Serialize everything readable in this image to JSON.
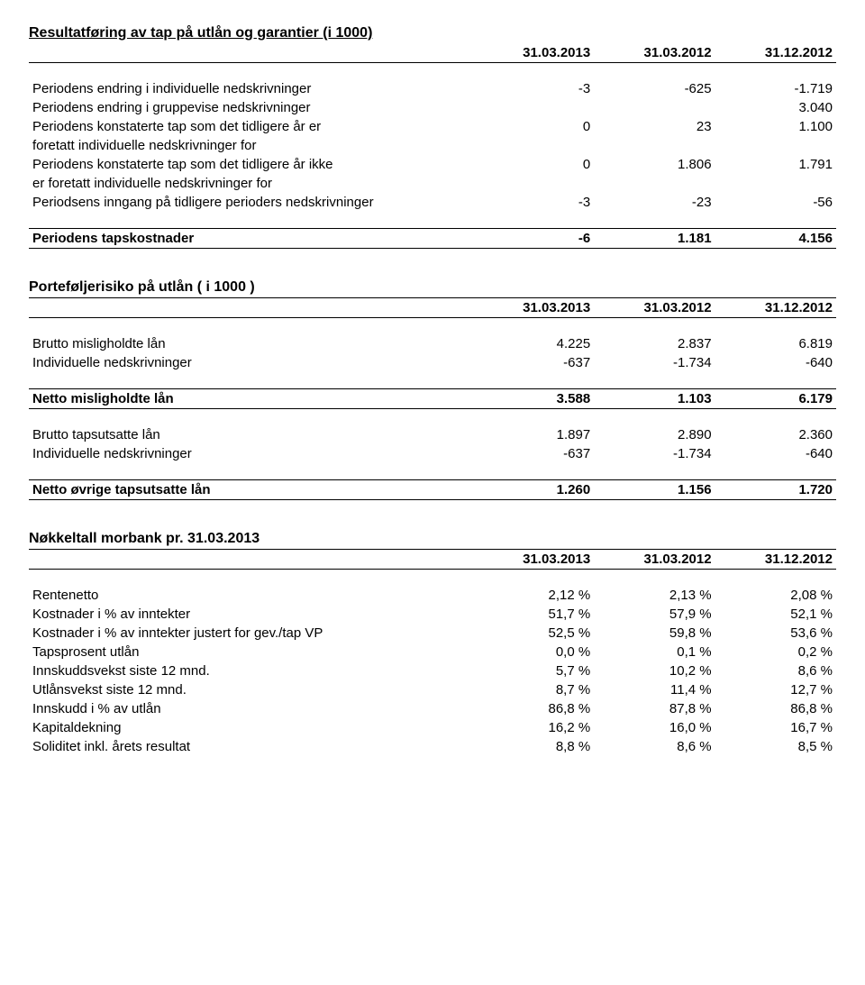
{
  "section1": {
    "title": "Resultatføring av tap på utlån og garantier (i 1000)",
    "headers": [
      "31.03.2013",
      "31.03.2012",
      "31.12.2012"
    ],
    "rows": [
      {
        "label": "Periodens endring i individuelle nedskrivninger",
        "v1": "-3",
        "v2": "-625",
        "v3": "-1.719"
      },
      {
        "label": "Periodens endring i gruppevise nedskrivninger",
        "v1": "",
        "v2": "",
        "v3": "3.040"
      },
      {
        "label": "Periodens konstaterte tap som det tidligere år er",
        "v1": "0",
        "v2": "23",
        "v3": "1.100"
      },
      {
        "label": "foretatt individuelle nedskrivninger for",
        "v1": "",
        "v2": "",
        "v3": ""
      },
      {
        "label": "Periodens konstaterte tap som det tidligere år ikke",
        "v1": "0",
        "v2": "1.806",
        "v3": "1.791"
      },
      {
        "label": "er foretatt individuelle nedskrivninger for",
        "v1": "",
        "v2": "",
        "v3": ""
      },
      {
        "label": "Periodsens inngang på tidligere perioders nedskrivninger",
        "v1": "-3",
        "v2": "-23",
        "v3": "-56"
      }
    ],
    "totalLabel": "Periodens tapskostnader",
    "totalV1": "-6",
    "totalV2": "1.181",
    "totalV3": "4.156"
  },
  "section2": {
    "title": "Porteføljerisiko på utlån ( i 1000 )",
    "headers": [
      "31.03.2013",
      "31.03.2012",
      "31.12.2012"
    ],
    "rows1": [
      {
        "label": "Brutto misligholdte lån",
        "v1": "4.225",
        "v2": "2.837",
        "v3": "6.819"
      },
      {
        "label": "Individuelle nedskrivninger",
        "v1": "-637",
        "v2": "-1.734",
        "v3": "-640"
      }
    ],
    "sub1Label": "Netto misligholdte lån",
    "sub1V1": "3.588",
    "sub1V2": "1.103",
    "sub1V3": "6.179",
    "rows2": [
      {
        "label": "Brutto tapsutsatte lån",
        "v1": "1.897",
        "v2": "2.890",
        "v3": "2.360"
      },
      {
        "label": "Individuelle nedskrivninger",
        "v1": "-637",
        "v2": "-1.734",
        "v3": "-640"
      }
    ],
    "sub2Label": "Netto øvrige tapsutsatte lån",
    "sub2V1": "1.260",
    "sub2V2": "1.156",
    "sub2V3": "1.720"
  },
  "section3": {
    "title": "Nøkkeltall morbank pr. 31.03.2013",
    "headers": [
      "31.03.2013",
      "31.03.2012",
      "31.12.2012"
    ],
    "rows": [
      {
        "label": "Rentenetto",
        "v1": "2,12 %",
        "v2": "2,13 %",
        "v3": "2,08 %"
      },
      {
        "label": "Kostnader i % av inntekter",
        "v1": "51,7 %",
        "v2": "57,9 %",
        "v3": "52,1 %"
      },
      {
        "label": "Kostnader i % av inntekter justert for gev./tap VP",
        "v1": "52,5 %",
        "v2": "59,8 %",
        "v3": "53,6 %"
      },
      {
        "label": "Tapsprosent utlån",
        "v1": "0,0 %",
        "v2": "0,1 %",
        "v3": "0,2 %"
      },
      {
        "label": "Innskuddsvekst siste 12 mnd.",
        "v1": "5,7 %",
        "v2": "10,2 %",
        "v3": "8,6 %"
      },
      {
        "label": "Utlånsvekst siste 12 mnd.",
        "v1": "8,7 %",
        "v2": "11,4 %",
        "v3": "12,7 %"
      },
      {
        "label": "Innskudd i % av utlån",
        "v1": "86,8 %",
        "v2": "87,8 %",
        "v3": "86,8 %"
      },
      {
        "label": "Kapitaldekning",
        "v1": "16,2 %",
        "v2": "16,0 %",
        "v3": "16,7 %"
      },
      {
        "label": "Soliditet inkl. årets resultat",
        "v1": "8,8 %",
        "v2": "8,6 %",
        "v3": "8,5 %"
      }
    ]
  }
}
